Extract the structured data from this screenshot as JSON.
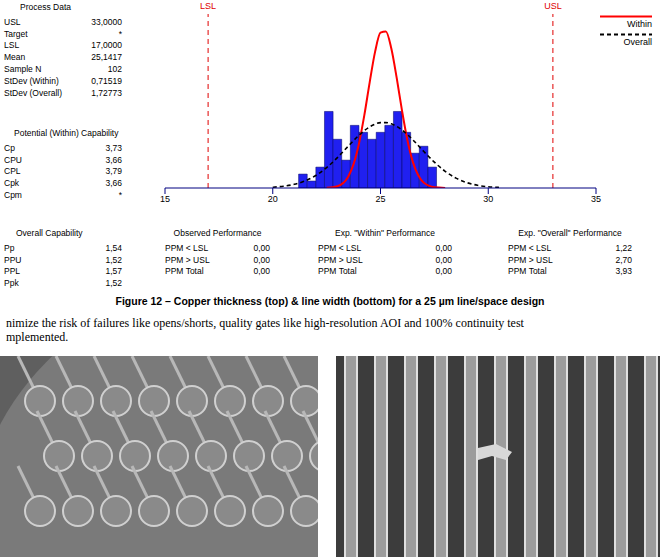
{
  "chart_data": {
    "type": "histogram",
    "xlim": [
      15,
      35
    ],
    "xticks": [
      15,
      20,
      25,
      30,
      35
    ],
    "ylim": [
      0,
      25
    ],
    "tick_labels": "x",
    "bins": [
      21.2,
      21.6,
      22.0,
      22.4,
      22.8,
      23.2,
      23.6,
      24.0,
      24.4,
      24.8,
      25.2,
      25.6,
      26.0,
      26.4,
      26.8,
      27.2,
      27.6
    ],
    "counts": [
      2,
      1,
      3,
      11,
      7,
      4,
      9,
      8,
      7,
      8,
      9,
      11,
      8,
      5,
      6,
      3
    ],
    "color": "#2020f0",
    "x": [
      20,
      20.5,
      21,
      21.5,
      22,
      22.5,
      23,
      23.5,
      23.75,
      24,
      24.25,
      24.5,
      24.75,
      25,
      25.25,
      25.5,
      25.75,
      26,
      26.25,
      26.5,
      26.75,
      27,
      27.5,
      28,
      28.5,
      29,
      29.5,
      30,
      30.5
    ],
    "series": [
      {
        "name": "Within",
        "color": "#ff0000",
        "line_style": "solid",
        "values": [
          null,
          null,
          null,
          null,
          null,
          0.02,
          0.26,
          1.63,
          3.43,
          6.37,
          10.46,
          15.22,
          19.59,
          22.32,
          22.5,
          20.07,
          15.85,
          11.08,
          6.85,
          3.75,
          1.82,
          0.78,
          0.1,
          0.01,
          null,
          null,
          null,
          null,
          null
        ]
      },
      {
        "name": "Overall",
        "color": "#000000",
        "line_style": "dashed",
        "values": [
          0.11,
          0.26,
          0.53,
          1.02,
          1.8,
          2.93,
          4.37,
          6.0,
          6.81,
          7.57,
          8.25,
          8.79,
          9.18,
          9.39,
          9.4,
          9.22,
          8.85,
          8.33,
          7.67,
          6.92,
          6.11,
          5.28,
          3.71,
          2.4,
          1.42,
          0.78,
          0.39,
          0.18,
          0.08
        ]
      }
    ],
    "reference_lines": [
      {
        "label": "LSL",
        "value": 17
      },
      {
        "label": "USL",
        "value": 33
      }
    ],
    "legend": "top-right"
  },
  "process_data": {
    "title": "Process Data",
    "rows": [
      [
        "USL",
        "33,0000"
      ],
      [
        "Target",
        "*"
      ],
      [
        "LSL",
        "17,0000"
      ],
      [
        "Mean",
        "25,1417"
      ],
      [
        "Sample N",
        "102"
      ],
      [
        "StDev (Within)",
        "0,71519"
      ],
      [
        "StDev (Overall)",
        "1,72773"
      ]
    ]
  },
  "potential_capability": {
    "title": "Potential (Within) Capability",
    "rows": [
      [
        "Cp",
        "3,73"
      ],
      [
        "CPU",
        "3,66"
      ],
      [
        "CPL",
        "3,79"
      ],
      [
        "Cpk",
        "3,66"
      ],
      [
        "Cpm",
        "*"
      ]
    ]
  },
  "overall_capability": {
    "title": "Overall Capability",
    "rows": [
      [
        "Pp",
        "1,54"
      ],
      [
        "PPU",
        "1,52"
      ],
      [
        "PPL",
        "1,57"
      ],
      [
        "Ppk",
        "1,52"
      ]
    ]
  },
  "observed_performance": {
    "title": "Observed Performance",
    "rows": [
      [
        "PPM < LSL",
        "0,00"
      ],
      [
        "PPM > USL",
        "0,00"
      ],
      [
        "PPM Total",
        "0,00"
      ]
    ]
  },
  "exp_within_performance": {
    "title": "Exp. \"Within\" Performance",
    "rows": [
      [
        "PPM < LSL",
        "0,00"
      ],
      [
        "PPM > USL",
        "0,00"
      ],
      [
        "PPM Total",
        "0,00"
      ]
    ]
  },
  "exp_overall_performance": {
    "title": "Exp. \"Overall\" Performance",
    "rows": [
      [
        "PPM < LSL",
        "1,22"
      ],
      [
        "PPM > USL",
        "2,70"
      ],
      [
        "PPM Total",
        "3,93"
      ]
    ]
  },
  "caption": "Figure 12 – Copper thickness (top) & line width (bottom) for a 25 µm line/space design",
  "paragraph": [
    "nimize the risk of failures like opens/shorts, quality gates like high-resolution AOI and 100% continuity test",
    "mplemented."
  ]
}
